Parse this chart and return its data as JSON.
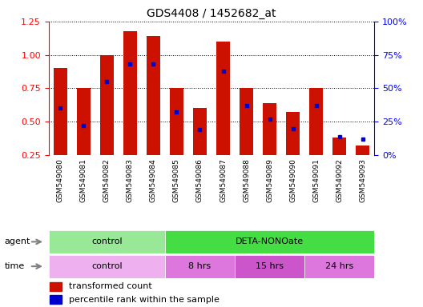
{
  "title": "GDS4408 / 1452682_at",
  "samples": [
    "GSM549080",
    "GSM549081",
    "GSM549082",
    "GSM549083",
    "GSM549084",
    "GSM549085",
    "GSM549086",
    "GSM549087",
    "GSM549088",
    "GSM549089",
    "GSM549090",
    "GSM549091",
    "GSM549092",
    "GSM549093"
  ],
  "red_values": [
    0.9,
    0.75,
    1.0,
    1.18,
    1.14,
    0.75,
    0.6,
    1.1,
    0.75,
    0.64,
    0.57,
    0.75,
    0.38,
    0.32
  ],
  "blue_values": [
    0.6,
    0.47,
    0.8,
    0.93,
    0.93,
    0.57,
    0.44,
    0.88,
    0.62,
    0.52,
    0.45,
    0.62,
    0.39,
    0.37
  ],
  "bar_bottom": 0.25,
  "ylim_left": [
    0.25,
    1.25
  ],
  "ylim_right": [
    0,
    100
  ],
  "yticks_left": [
    0.25,
    0.5,
    0.75,
    1.0,
    1.25
  ],
  "yticks_right": [
    0,
    25,
    50,
    75,
    100
  ],
  "agent_groups": [
    {
      "label": "control",
      "start": 0,
      "end": 5,
      "color": "#98E898"
    },
    {
      "label": "DETA-NONOate",
      "start": 5,
      "end": 14,
      "color": "#44DD44"
    }
  ],
  "time_groups": [
    {
      "label": "control",
      "start": 0,
      "end": 5,
      "color": "#EEB0EE"
    },
    {
      "label": "8 hrs",
      "start": 5,
      "end": 8,
      "color": "#DD77DD"
    },
    {
      "label": "15 hrs",
      "start": 8,
      "end": 11,
      "color": "#CC55CC"
    },
    {
      "label": "24 hrs",
      "start": 11,
      "end": 14,
      "color": "#DD77DD"
    }
  ],
  "bar_color": "#CC1100",
  "dot_color": "#0000CC",
  "background_color": "#ffffff",
  "legend_items": [
    "transformed count",
    "percentile rank within the sample"
  ]
}
